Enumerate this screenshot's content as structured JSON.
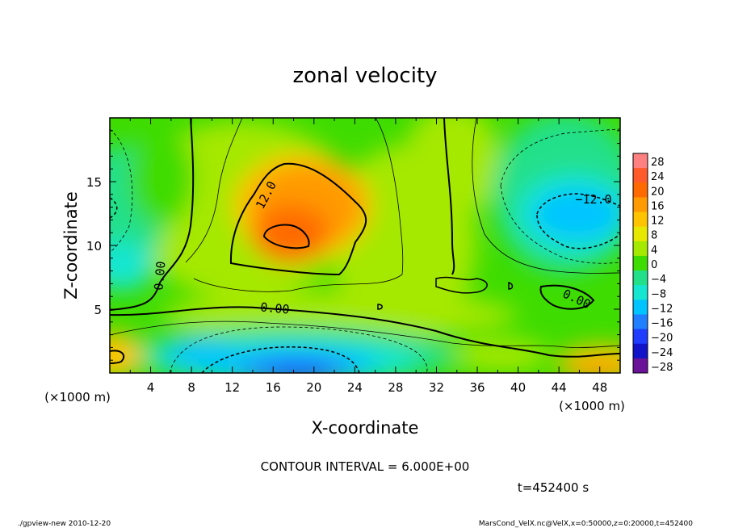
{
  "chart_data": {
    "type": "heatmap",
    "title": "zonal velocity",
    "xlabel": "X-coordinate",
    "ylabel": "Z-coordinate",
    "x_unit_left": "(×1000 m)",
    "x_unit_right": "(×1000 m)",
    "xlim": [
      0,
      50
    ],
    "ylim": [
      0,
      20
    ],
    "xticks": [
      "4",
      "8",
      "12",
      "16",
      "20",
      "24",
      "28",
      "32",
      "36",
      "40",
      "44",
      "48"
    ],
    "xtick_values": [
      4,
      8,
      12,
      16,
      20,
      24,
      28,
      32,
      36,
      40,
      44,
      48
    ],
    "yticks": [
      "5",
      "10",
      "15"
    ],
    "ytick_values": [
      5,
      10,
      15
    ],
    "colorbar": {
      "labels": [
        "28",
        "24",
        "20",
        "16",
        "12",
        "8",
        "4",
        "0",
        "−4",
        "−8",
        "−12",
        "−16",
        "−20",
        "−24",
        "−28"
      ],
      "values": [
        28,
        24,
        20,
        16,
        12,
        8,
        4,
        0,
        -4,
        -8,
        -12,
        -16,
        -20,
        -24,
        -28
      ],
      "colors": [
        "#ff8080",
        "#ff5a2a",
        "#ff6a00",
        "#ff9a00",
        "#ffc400",
        "#e7e800",
        "#a5e800",
        "#3fdc00",
        "#22e08a",
        "#14e6d2",
        "#00c4ff",
        "#1f7fff",
        "#1f3cff",
        "#1212c8",
        "#6a1298"
      ]
    },
    "contour_labels": [
      "12.0",
      "0.00",
      "0.00",
      "0.00",
      "−12.0"
    ],
    "contour_interval_text": "CONTOUR INTERVAL = 6.000E+00",
    "time_text": "t=452400 s",
    "footer_left": "./gpview-new  2010-12-20",
    "footer_right": "MarsCond_VelX.nc@VelX,x=0:50000,z=0:20000,t=452400"
  }
}
